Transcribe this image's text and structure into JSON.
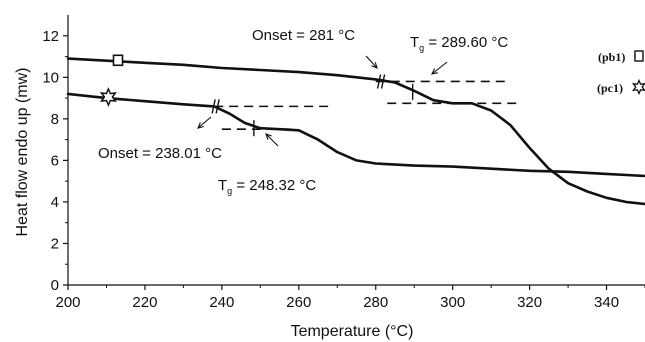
{
  "chart_data": {
    "type": "line",
    "xlabel": "Temperature (°C)",
    "ylabel": "Heat flow endo up (mw)",
    "xlim": [
      200,
      350
    ],
    "ylim": [
      0,
      13
    ],
    "x_ticks": [
      200,
      220,
      240,
      260,
      280,
      300,
      320,
      340
    ],
    "y_ticks": [
      0,
      2,
      4,
      6,
      8,
      10,
      12
    ],
    "grid": false,
    "legend_placement": "top-right",
    "series": [
      {
        "name": "(pb1)",
        "marker": "square",
        "color": "#111111",
        "x": [
          200,
          210,
          220,
          230,
          240,
          250,
          260,
          270,
          280,
          285,
          290,
          295,
          300,
          305,
          310,
          315,
          320,
          325,
          330,
          335,
          340,
          345,
          350
        ],
        "y": [
          10.9,
          10.8,
          10.7,
          10.6,
          10.45,
          10.35,
          10.25,
          10.1,
          9.9,
          9.75,
          9.35,
          8.9,
          8.75,
          8.75,
          8.4,
          7.7,
          6.6,
          5.6,
          4.9,
          4.5,
          4.2,
          4.0,
          3.9
        ]
      },
      {
        "name": "(pc1)",
        "marker": "star",
        "color": "#111111",
        "x": [
          200,
          210,
          220,
          230,
          238,
          242,
          246,
          250,
          255,
          260,
          265,
          270,
          275,
          280,
          290,
          300,
          310,
          320,
          330,
          340,
          350
        ],
        "y": [
          9.2,
          9.0,
          8.85,
          8.7,
          8.6,
          8.25,
          7.8,
          7.55,
          7.5,
          7.45,
          7.0,
          6.4,
          6.0,
          5.85,
          5.75,
          5.7,
          5.6,
          5.5,
          5.45,
          5.35,
          5.25
        ]
      }
    ],
    "annotations": [
      {
        "text": "Onset = 281 °C",
        "x": 281,
        "y": 9.9
      },
      {
        "text": "Tg = 289.60 °C",
        "label_main": "T",
        "label_sub": "g",
        "label_rest": " = 289.60 °C",
        "x": 289.6,
        "y": 9.3
      },
      {
        "text": "Onset = 238.01 °C",
        "x": 238.01,
        "y": 8.6
      },
      {
        "text": "Tg = 248.32 °C",
        "label_main": "T",
        "label_sub": "g",
        "label_rest": " = 248.32 °C",
        "x": 248.32,
        "y": 7.6
      }
    ]
  }
}
